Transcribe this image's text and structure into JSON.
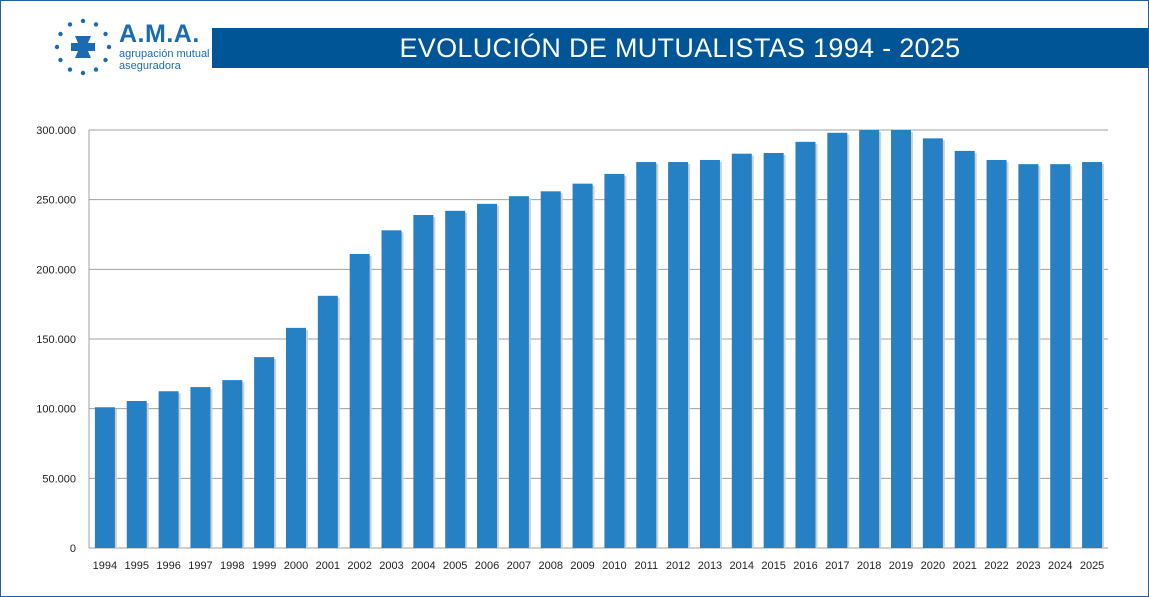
{
  "logo": {
    "name": "A.M.A.",
    "line1": "agrupación mutual",
    "line2": "aseguradora"
  },
  "chart_data": {
    "type": "bar",
    "title": "EVOLUCIÓN DE MUTUALISTAS 1994 - 2025",
    "xlabel": "",
    "ylabel": "",
    "ylim": [
      0,
      300000
    ],
    "yticks": [
      0,
      50000,
      100000,
      150000,
      200000,
      250000,
      300000
    ],
    "ytick_labels": [
      "0",
      "50.000",
      "100.000",
      "150.000",
      "200.000",
      "250.000",
      "300.000"
    ],
    "grid": true,
    "bar_color": "#2581c4",
    "categories": [
      "1994",
      "1995",
      "1996",
      "1997",
      "1998",
      "1999",
      "2000",
      "2001",
      "2002",
      "2003",
      "2004",
      "2005",
      "2006",
      "2007",
      "2008",
      "2009",
      "2010",
      "2011",
      "2012",
      "2013",
      "2014",
      "2015",
      "2016",
      "2017",
      "2018",
      "2019",
      "2020",
      "2021",
      "2022",
      "2023",
      "2024",
      "2025"
    ],
    "values": [
      101000,
      105500,
      112500,
      115500,
      120500,
      137000,
      158000,
      181000,
      211000,
      228000,
      239000,
      242000,
      247000,
      252500,
      256000,
      261500,
      268500,
      277000,
      277000,
      278500,
      283000,
      283500,
      291500,
      298000,
      300000,
      300000,
      294000,
      285000,
      278500,
      275500,
      275500,
      277000
    ]
  }
}
